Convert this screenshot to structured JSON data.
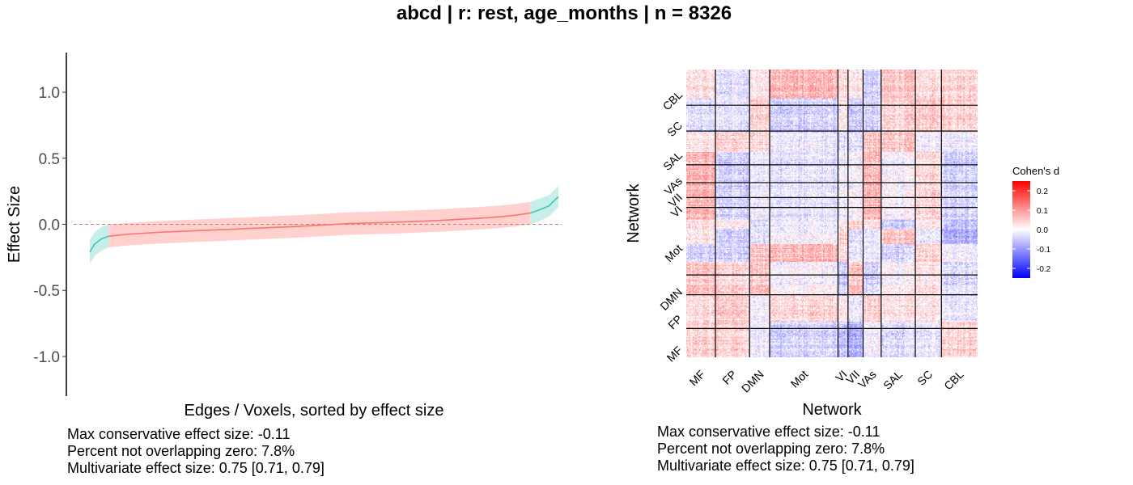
{
  "title": "abcd | r: rest, age_months | n = 8326",
  "left_stats": [
    "Max conservative effect size: -0.11",
    "Percent not overlapping zero: 7.8%",
    "Multivariate effect size: 0.75 [0.71, 0.79]"
  ],
  "right_stats": [
    "Max conservative effect size: -0.11",
    "Percent not overlapping zero: 7.8%",
    "Multivariate effect size: 0.75 [0.71, 0.79]"
  ],
  "colors": {
    "significant": "#3fc7b8",
    "significant_fill": "#c6efea",
    "nonsignificant": "#f8766d",
    "nonsignificant_fill": "#ffd0cd",
    "zero_line": "#c9797a",
    "heat_low": "#0000ff",
    "heat_mid": "#ffffff",
    "heat_high": "#ff0000"
  },
  "chart_data": [
    {
      "type": "line",
      "xlabel": "Edges / Voxels, sorted by effect size",
      "ylabel": "Effect Size",
      "ylim": [
        -1.3,
        1.3
      ],
      "yticks": [
        1.0,
        0.5,
        0.0,
        -0.5,
        -1.0
      ],
      "ytick_labels": [
        "1.0",
        "0.5",
        "0.0",
        "-0.5",
        "-1.0"
      ],
      "x_range": [
        0,
        1
      ],
      "reference_line": 0,
      "series": [
        {
          "x": [
            0.0,
            0.01,
            0.025,
            0.04,
            0.08,
            0.15,
            0.25,
            0.35,
            0.45,
            0.5,
            0.55,
            0.65,
            0.75,
            0.85,
            0.9,
            0.94,
            0.96,
            0.98,
            1.0
          ],
          "y": [
            -0.21,
            -0.15,
            -0.11,
            -0.09,
            -0.075,
            -0.06,
            -0.045,
            -0.03,
            -0.015,
            -0.005,
            0.005,
            0.015,
            0.03,
            0.05,
            0.065,
            0.085,
            0.11,
            0.14,
            0.21
          ],
          "lower": [
            -0.3,
            -0.24,
            -0.2,
            -0.175,
            -0.16,
            -0.145,
            -0.13,
            -0.115,
            -0.1,
            -0.09,
            -0.08,
            -0.07,
            -0.055,
            -0.035,
            -0.02,
            0.0,
            0.025,
            0.06,
            0.13
          ],
          "upper": [
            -0.12,
            -0.06,
            -0.02,
            0.0,
            0.01,
            0.025,
            0.04,
            0.055,
            0.07,
            0.08,
            0.09,
            0.1,
            0.115,
            0.135,
            0.15,
            0.17,
            0.195,
            0.22,
            0.29
          ]
        }
      ],
      "significant_ranges": [
        [
          0.0,
          0.04
        ],
        [
          0.94,
          1.0
        ]
      ]
    },
    {
      "type": "heatmap",
      "xlabel": "Network",
      "ylabel": "Network",
      "networks": [
        "MF",
        "FP",
        "DMN",
        "Mot",
        "VI",
        "VII",
        "VAs",
        "SAL",
        "SC",
        "CBL"
      ],
      "network_sizes": [
        29,
        34,
        20,
        68,
        10,
        15,
        18,
        34,
        26,
        36
      ],
      "legend_title": "Cohen's d",
      "legend_ticks": [
        0.2,
        0.1,
        0.0,
        -0.1,
        -0.2
      ],
      "legend_tick_labels": [
        "0.2",
        "0.1",
        "0.0",
        "-0.1",
        "-0.2"
      ],
      "color_range": [
        -0.25,
        0.25
      ]
    }
  ]
}
